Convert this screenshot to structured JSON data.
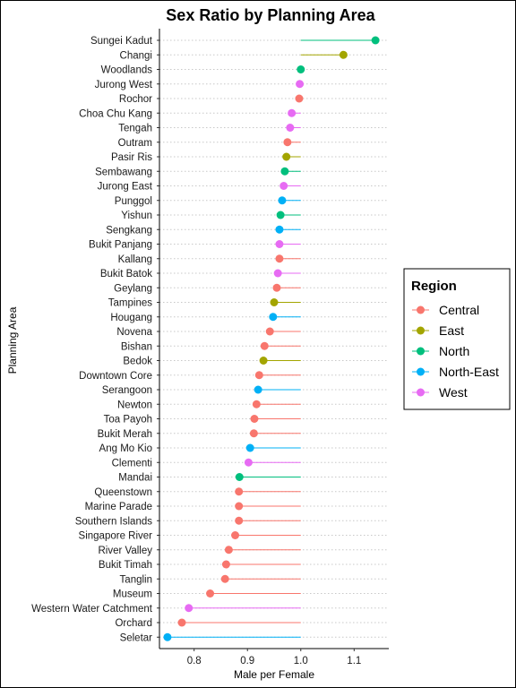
{
  "chart_data": {
    "type": "lollipop",
    "title": "Sex Ratio by Planning Area",
    "xlabel": "Male per Female",
    "ylabel": "Planning Area",
    "xlim": [
      0.735,
      1.165
    ],
    "xticks": [
      0.8,
      0.9,
      1.0,
      1.1
    ],
    "xtick_labels": [
      "0.8",
      "0.9",
      "1.0",
      "1.1"
    ],
    "baseline": 1.0,
    "grid": "horizontal dotted",
    "legend": {
      "title": "Region",
      "placement": "right",
      "entries": [
        {
          "name": "Central",
          "color": "#F8766D"
        },
        {
          "name": "East",
          "color": "#A3A500"
        },
        {
          "name": "North",
          "color": "#00BF7D"
        },
        {
          "name": "North-East",
          "color": "#00B0F6"
        },
        {
          "name": "West",
          "color": "#E76BF3"
        }
      ]
    },
    "points": [
      {
        "area": "Sungei Kadut",
        "value": 1.14,
        "region": "North"
      },
      {
        "area": "Changi",
        "value": 1.08,
        "region": "East"
      },
      {
        "area": "Woodlands",
        "value": 1.0,
        "region": "North"
      },
      {
        "area": "Jurong West",
        "value": 0.998,
        "region": "West"
      },
      {
        "area": "Rochor",
        "value": 0.997,
        "region": "Central"
      },
      {
        "area": "Choa Chu Kang",
        "value": 0.983,
        "region": "West"
      },
      {
        "area": "Tengah",
        "value": 0.98,
        "region": "West"
      },
      {
        "area": "Outram",
        "value": 0.975,
        "region": "Central"
      },
      {
        "area": "Pasir Ris",
        "value": 0.973,
        "region": "East"
      },
      {
        "area": "Sembawang",
        "value": 0.97,
        "region": "North"
      },
      {
        "area": "Jurong East",
        "value": 0.968,
        "region": "West"
      },
      {
        "area": "Punggol",
        "value": 0.965,
        "region": "North-East"
      },
      {
        "area": "Yishun",
        "value": 0.962,
        "region": "North"
      },
      {
        "area": "Sengkang",
        "value": 0.96,
        "region": "North-East"
      },
      {
        "area": "Bukit Panjang",
        "value": 0.96,
        "region": "West"
      },
      {
        "area": "Kallang",
        "value": 0.96,
        "region": "Central"
      },
      {
        "area": "Bukit Batok",
        "value": 0.957,
        "region": "West"
      },
      {
        "area": "Geylang",
        "value": 0.955,
        "region": "Central"
      },
      {
        "area": "Tampines",
        "value": 0.95,
        "region": "East"
      },
      {
        "area": "Hougang",
        "value": 0.948,
        "region": "North-East"
      },
      {
        "area": "Novena",
        "value": 0.942,
        "region": "Central"
      },
      {
        "area": "Bishan",
        "value": 0.932,
        "region": "Central"
      },
      {
        "area": "Bedok",
        "value": 0.93,
        "region": "East"
      },
      {
        "area": "Downtown Core",
        "value": 0.922,
        "region": "Central"
      },
      {
        "area": "Serangoon",
        "value": 0.92,
        "region": "North-East"
      },
      {
        "area": "Newton",
        "value": 0.917,
        "region": "Central"
      },
      {
        "area": "Toa Payoh",
        "value": 0.913,
        "region": "Central"
      },
      {
        "area": "Bukit Merah",
        "value": 0.912,
        "region": "Central"
      },
      {
        "area": "Ang Mo Kio",
        "value": 0.905,
        "region": "North-East"
      },
      {
        "area": "Clementi",
        "value": 0.902,
        "region": "West"
      },
      {
        "area": "Mandai",
        "value": 0.885,
        "region": "North"
      },
      {
        "area": "Queenstown",
        "value": 0.884,
        "region": "Central"
      },
      {
        "area": "Marine Parade",
        "value": 0.884,
        "region": "Central"
      },
      {
        "area": "Southern Islands",
        "value": 0.884,
        "region": "Central"
      },
      {
        "area": "Singapore River",
        "value": 0.877,
        "region": "Central"
      },
      {
        "area": "River Valley",
        "value": 0.865,
        "region": "Central"
      },
      {
        "area": "Bukit Timah",
        "value": 0.86,
        "region": "Central"
      },
      {
        "area": "Tanglin",
        "value": 0.858,
        "region": "Central"
      },
      {
        "area": "Museum",
        "value": 0.83,
        "region": "Central"
      },
      {
        "area": "Western Water Catchment",
        "value": 0.79,
        "region": "West"
      },
      {
        "area": "Orchard",
        "value": 0.777,
        "region": "Central"
      },
      {
        "area": "Seletar",
        "value": 0.75,
        "region": "North-East"
      }
    ]
  }
}
